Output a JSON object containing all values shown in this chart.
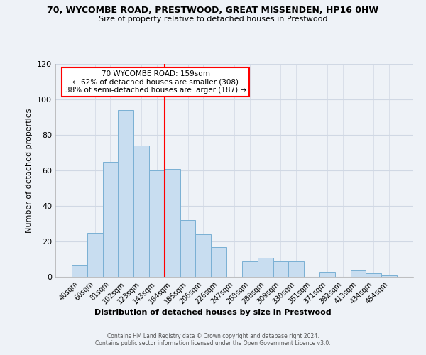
{
  "title1": "70, WYCOMBE ROAD, PRESTWOOD, GREAT MISSENDEN, HP16 0HW",
  "title2": "Size of property relative to detached houses in Prestwood",
  "xlabel": "Distribution of detached houses by size in Prestwood",
  "ylabel": "Number of detached properties",
  "bar_labels": [
    "40sqm",
    "60sqm",
    "81sqm",
    "102sqm",
    "123sqm",
    "143sqm",
    "164sqm",
    "185sqm",
    "206sqm",
    "226sqm",
    "247sqm",
    "268sqm",
    "288sqm",
    "309sqm",
    "330sqm",
    "351sqm",
    "371sqm",
    "392sqm",
    "413sqm",
    "434sqm",
    "454sqm"
  ],
  "bar_values": [
    7,
    25,
    65,
    94,
    74,
    60,
    61,
    32,
    24,
    17,
    0,
    9,
    11,
    9,
    9,
    0,
    3,
    0,
    4,
    2,
    1
  ],
  "bar_color": "#c8ddf0",
  "bar_edge_color": "#7ab0d4",
  "vline_color": "red",
  "annotation_title": "70 WYCOMBE ROAD: 159sqm",
  "annotation_line1": "← 62% of detached houses are smaller (308)",
  "annotation_line2": "38% of semi-detached houses are larger (187) →",
  "annotation_box_color": "white",
  "annotation_box_edge_color": "red",
  "ylim": [
    0,
    120
  ],
  "yticks": [
    0,
    20,
    40,
    60,
    80,
    100,
    120
  ],
  "footer1": "Contains HM Land Registry data © Crown copyright and database right 2024.",
  "footer2": "Contains public sector information licensed under the Open Government Licence v3.0.",
  "bg_color": "#eef2f7",
  "plot_bg_color": "#eef2f7",
  "grid_color": "#d0d8e4",
  "title1_fontsize": 9,
  "title2_fontsize": 8
}
